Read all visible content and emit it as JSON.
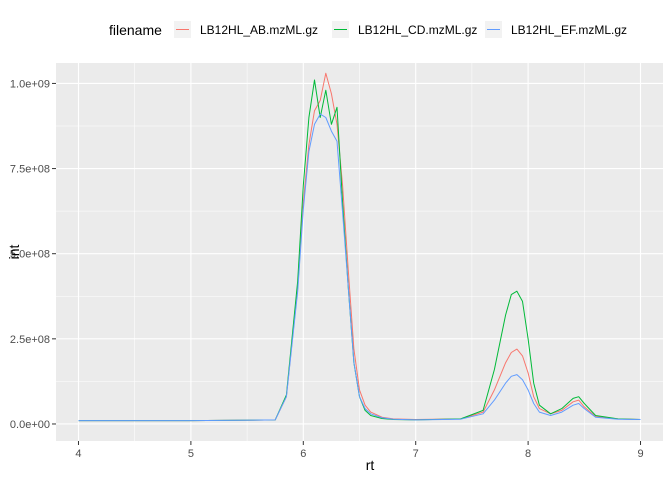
{
  "chart_data": {
    "type": "line",
    "xlabel": "rt",
    "ylabel": "int",
    "xlim": [
      3.8,
      9.2
    ],
    "ylim": [
      -50000000.0,
      1060000000.0
    ],
    "x_ticks": [
      4,
      5,
      6,
      7,
      8,
      9
    ],
    "x_tick_labels": [
      "4",
      "5",
      "6",
      "7",
      "8",
      "9"
    ],
    "y_ticks": [
      0,
      250000000.0,
      500000000.0,
      750000000.0,
      1000000000.0
    ],
    "y_tick_labels": [
      "0.0e+00",
      "2.5e+08",
      "5.0e+08",
      "7.5e+08",
      "1.0e+09"
    ],
    "grid": true,
    "legend": {
      "title": "filename",
      "position": "top"
    },
    "series": [
      {
        "name": "LB12HL_AB.mzML.gz",
        "color": "#F8766D",
        "x": [
          4.0,
          5.0,
          5.75,
          5.85,
          5.95,
          6.0,
          6.05,
          6.1,
          6.15,
          6.2,
          6.25,
          6.3,
          6.35,
          6.4,
          6.45,
          6.5,
          6.55,
          6.6,
          6.7,
          6.8,
          7.0,
          7.4,
          7.6,
          7.7,
          7.8,
          7.85,
          7.9,
          7.95,
          8.0,
          8.05,
          8.1,
          8.2,
          8.3,
          8.4,
          8.45,
          8.5,
          8.6,
          8.8,
          9.0
        ],
        "y": [
          10000000.0,
          10000000.0,
          12000000.0,
          80000000.0,
          400000000.0,
          650000000.0,
          820000000.0,
          920000000.0,
          950000000.0,
          1030000000.0,
          970000000.0,
          880000000.0,
          700000000.0,
          450000000.0,
          220000000.0,
          100000000.0,
          55000000.0,
          35000000.0,
          20000000.0,
          15000000.0,
          13000000.0,
          15000000.0,
          35000000.0,
          100000000.0,
          180000000.0,
          210000000.0,
          220000000.0,
          200000000.0,
          150000000.0,
          80000000.0,
          45000000.0,
          30000000.0,
          40000000.0,
          65000000.0,
          70000000.0,
          50000000.0,
          22000000.0,
          15000000.0,
          13000000.0
        ]
      },
      {
        "name": "LB12HL_CD.mzML.gz",
        "color": "#00BA38",
        "x": [
          4.0,
          5.0,
          5.75,
          5.85,
          5.95,
          6.0,
          6.05,
          6.1,
          6.15,
          6.2,
          6.25,
          6.3,
          6.35,
          6.4,
          6.45,
          6.5,
          6.55,
          6.6,
          6.7,
          6.8,
          7.0,
          7.4,
          7.6,
          7.7,
          7.8,
          7.85,
          7.9,
          7.95,
          8.0,
          8.05,
          8.1,
          8.2,
          8.3,
          8.4,
          8.45,
          8.5,
          8.6,
          8.8,
          9.0
        ],
        "y": [
          10000000.0,
          10000000.0,
          12000000.0,
          85000000.0,
          420000000.0,
          700000000.0,
          900000000.0,
          1010000000.0,
          900000000.0,
          980000000.0,
          880000000.0,
          930000000.0,
          650000000.0,
          400000000.0,
          180000000.0,
          80000000.0,
          40000000.0,
          25000000.0,
          16000000.0,
          13000000.0,
          12000000.0,
          15000000.0,
          40000000.0,
          160000000.0,
          320000000.0,
          380000000.0,
          390000000.0,
          360000000.0,
          250000000.0,
          120000000.0,
          55000000.0,
          30000000.0,
          45000000.0,
          75000000.0,
          80000000.0,
          60000000.0,
          25000000.0,
          15000000.0,
          13000000.0
        ]
      },
      {
        "name": "LB12HL_EF.mzML.gz",
        "color": "#619CFF",
        "x": [
          4.0,
          5.0,
          5.75,
          5.85,
          5.95,
          6.0,
          6.05,
          6.1,
          6.15,
          6.2,
          6.25,
          6.3,
          6.35,
          6.4,
          6.45,
          6.5,
          6.55,
          6.6,
          6.7,
          6.8,
          7.0,
          7.4,
          7.6,
          7.7,
          7.8,
          7.85,
          7.9,
          7.95,
          8.0,
          8.05,
          8.1,
          8.2,
          8.3,
          8.4,
          8.45,
          8.5,
          8.6,
          8.8,
          9.0
        ],
        "y": [
          10000000.0,
          10000000.0,
          12000000.0,
          80000000.0,
          390000000.0,
          630000000.0,
          800000000.0,
          880000000.0,
          910000000.0,
          900000000.0,
          860000000.0,
          830000000.0,
          620000000.0,
          400000000.0,
          180000000.0,
          80000000.0,
          45000000.0,
          30000000.0,
          18000000.0,
          14000000.0,
          12000000.0,
          14000000.0,
          30000000.0,
          70000000.0,
          120000000.0,
          140000000.0,
          145000000.0,
          130000000.0,
          100000000.0,
          60000000.0,
          35000000.0,
          25000000.0,
          35000000.0,
          55000000.0,
          60000000.0,
          45000000.0,
          20000000.0,
          14000000.0,
          13000000.0
        ]
      }
    ]
  }
}
